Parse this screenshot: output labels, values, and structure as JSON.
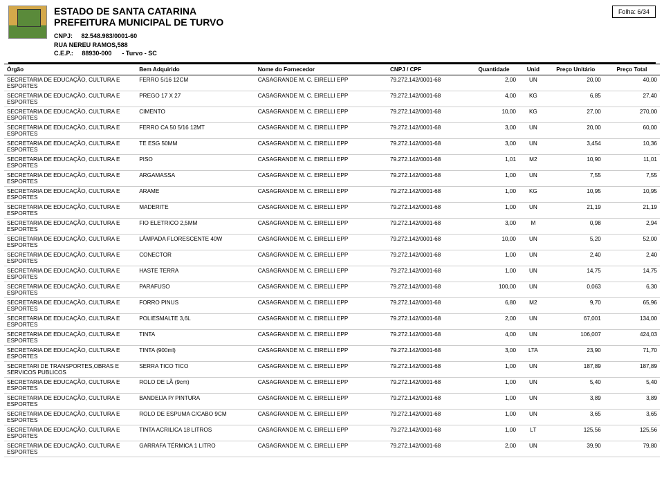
{
  "header": {
    "estado": "ESTADO DE SANTA CATARINA",
    "prefeitura": "PREFEITURA MUNICIPAL DE TURVO",
    "cnpj_label": "CNPJ:",
    "cnpj": "82.548.983/0001-60",
    "rua": "RUA NEREU RAMOS,588",
    "cep_label": "C.E.P.:",
    "cep": "88930-000",
    "cidade": "- Turvo - SC",
    "folha_label": "Folha:",
    "folha_value": "6/34"
  },
  "columns": [
    "Órgão",
    "Bem Adquirido",
    "Nome do Fornecedor",
    "CNPJ / CPF",
    "Quantidade",
    "Unid",
    "Preço Unitário",
    "Preço Total"
  ],
  "rows": [
    {
      "org": "SECRETARIA DE EDUCAÇÃO, CULTURA E ESPORTES",
      "bem": "FERRO 5/16 12CM",
      "nome": "CASAGRANDE M. C. EIRELLI  EPP",
      "cnpj": "79.272.142/0001-68",
      "qtd": "2,00",
      "un": "UN",
      "pu": "20,00",
      "pt": "40,00"
    },
    {
      "org": "SECRETARIA DE EDUCAÇÃO, CULTURA E ESPORTES",
      "bem": "PREGO 17 X 27",
      "nome": "CASAGRANDE M. C. EIRELLI  EPP",
      "cnpj": "79.272.142/0001-68",
      "qtd": "4,00",
      "un": "KG",
      "pu": "6,85",
      "pt": "27,40"
    },
    {
      "org": "SECRETARIA DE EDUCAÇÃO, CULTURA E ESPORTES",
      "bem": "CIMENTO",
      "nome": "CASAGRANDE M. C. EIRELLI  EPP",
      "cnpj": "79.272.142/0001-68",
      "qtd": "10,00",
      "un": "KG",
      "pu": "27,00",
      "pt": "270,00"
    },
    {
      "org": "SECRETARIA DE EDUCAÇÃO, CULTURA E ESPORTES",
      "bem": "FERRO CA 50 5/16 12MT",
      "nome": "CASAGRANDE M. C. EIRELLI  EPP",
      "cnpj": "79.272.142/0001-68",
      "qtd": "3,00",
      "un": "UN",
      "pu": "20,00",
      "pt": "60,00"
    },
    {
      "org": "SECRETARIA DE EDUCAÇÃO, CULTURA E ESPORTES",
      "bem": "TE ESG 50MM",
      "nome": "CASAGRANDE M. C. EIRELLI  EPP",
      "cnpj": "79.272.142/0001-68",
      "qtd": "3,00",
      "un": "UN",
      "pu": "3,454",
      "pt": "10,36"
    },
    {
      "org": "SECRETARIA DE EDUCAÇÃO, CULTURA E ESPORTES",
      "bem": "PISO",
      "nome": "CASAGRANDE M. C. EIRELLI  EPP",
      "cnpj": "79.272.142/0001-68",
      "qtd": "1,01",
      "un": "M2",
      "pu": "10,90",
      "pt": "11,01"
    },
    {
      "org": "SECRETARIA DE EDUCAÇÃO, CULTURA E ESPORTES",
      "bem": "ARGAMASSA",
      "nome": "CASAGRANDE M. C. EIRELLI  EPP",
      "cnpj": "79.272.142/0001-68",
      "qtd": "1,00",
      "un": "UN",
      "pu": "7,55",
      "pt": "7,55"
    },
    {
      "org": "SECRETARIA DE EDUCAÇÃO, CULTURA E ESPORTES",
      "bem": "ARAME",
      "nome": "CASAGRANDE M. C. EIRELLI  EPP",
      "cnpj": "79.272.142/0001-68",
      "qtd": "1,00",
      "un": "KG",
      "pu": "10,95",
      "pt": "10,95"
    },
    {
      "org": "SECRETARIA DE EDUCAÇÃO, CULTURA E ESPORTES",
      "bem": "MADERITE",
      "nome": "CASAGRANDE M. C. EIRELLI  EPP",
      "cnpj": "79.272.142/0001-68",
      "qtd": "1,00",
      "un": "UN",
      "pu": "21,19",
      "pt": "21,19"
    },
    {
      "org": "SECRETARIA DE EDUCAÇÃO, CULTURA E ESPORTES",
      "bem": "FIO ELETRICO 2,5MM",
      "nome": "CASAGRANDE M. C. EIRELLI  EPP",
      "cnpj": "79.272.142/0001-68",
      "qtd": "3,00",
      "un": "M",
      "pu": "0,98",
      "pt": "2,94"
    },
    {
      "org": "SECRETARIA DE EDUCAÇÃO, CULTURA E ESPORTES",
      "bem": "LÂMPADA FLORESCENTE 40W",
      "nome": "CASAGRANDE M. C. EIRELLI  EPP",
      "cnpj": "79.272.142/0001-68",
      "qtd": "10,00",
      "un": "UN",
      "pu": "5,20",
      "pt": "52,00"
    },
    {
      "org": "SECRETARIA DE EDUCAÇÃO, CULTURA E ESPORTES",
      "bem": "CONECTOR",
      "nome": "CASAGRANDE M. C. EIRELLI  EPP",
      "cnpj": "79.272.142/0001-68",
      "qtd": "1,00",
      "un": "UN",
      "pu": "2,40",
      "pt": "2,40"
    },
    {
      "org": "SECRETARIA DE EDUCAÇÃO, CULTURA E ESPORTES",
      "bem": "HASTE TERRA",
      "nome": "CASAGRANDE M. C. EIRELLI  EPP",
      "cnpj": "79.272.142/0001-68",
      "qtd": "1,00",
      "un": "UN",
      "pu": "14,75",
      "pt": "14,75"
    },
    {
      "org": "SECRETARIA DE EDUCAÇÃO, CULTURA E ESPORTES",
      "bem": "PARAFUSO",
      "nome": "CASAGRANDE M. C. EIRELLI  EPP",
      "cnpj": "79.272.142/0001-68",
      "qtd": "100,00",
      "un": "UN",
      "pu": "0,063",
      "pt": "6,30"
    },
    {
      "org": "SECRETARIA DE EDUCAÇÃO, CULTURA E ESPORTES",
      "bem": "FORRO PINUS",
      "nome": "CASAGRANDE M. C. EIRELLI  EPP",
      "cnpj": "79.272.142/0001-68",
      "qtd": "6,80",
      "un": "M2",
      "pu": "9,70",
      "pt": "65,96"
    },
    {
      "org": "SECRETARIA DE EDUCAÇÃO, CULTURA E ESPORTES",
      "bem": "POLIESMALTE 3,6L",
      "nome": "CASAGRANDE M. C. EIRELLI  EPP",
      "cnpj": "79.272.142/0001-68",
      "qtd": "2,00",
      "un": "UN",
      "pu": "67,001",
      "pt": "134,00"
    },
    {
      "org": "SECRETARIA DE EDUCAÇÃO, CULTURA E ESPORTES",
      "bem": "TINTA",
      "nome": "CASAGRANDE M. C. EIRELLI  EPP",
      "cnpj": "79.272.142/0001-68",
      "qtd": "4,00",
      "un": "UN",
      "pu": "106,007",
      "pt": "424,03"
    },
    {
      "org": "SECRETARIA DE EDUCAÇÃO, CULTURA E ESPORTES",
      "bem": "TINTA (900ml)",
      "nome": "CASAGRANDE M. C. EIRELLI  EPP",
      "cnpj": "79.272.142/0001-68",
      "qtd": "3,00",
      "un": "LTA",
      "pu": "23,90",
      "pt": "71,70"
    },
    {
      "org": "SECRETARI DE TRANSPORTES,OBRAS E SERVICOS PUBLICOS",
      "bem": "SERRA TICO TICO",
      "nome": "CASAGRANDE M. C. EIRELLI  EPP",
      "cnpj": "79.272.142/0001-68",
      "qtd": "1,00",
      "un": "UN",
      "pu": "187,89",
      "pt": "187,89"
    },
    {
      "org": "SECRETARIA DE EDUCAÇÃO, CULTURA E ESPORTES",
      "bem": "ROLO DE LÃ (9cm)",
      "nome": "CASAGRANDE M. C. EIRELLI  EPP",
      "cnpj": "79.272.142/0001-68",
      "qtd": "1,00",
      "un": "UN",
      "pu": "5,40",
      "pt": "5,40"
    },
    {
      "org": "SECRETARIA DE EDUCAÇÃO, CULTURA E ESPORTES",
      "bem": "BANDEIJA P/ PINTURA",
      "nome": "CASAGRANDE M. C. EIRELLI  EPP",
      "cnpj": "79.272.142/0001-68",
      "qtd": "1,00",
      "un": "UN",
      "pu": "3,89",
      "pt": "3,89"
    },
    {
      "org": "SECRETARIA DE EDUCAÇÃO, CULTURA E ESPORTES",
      "bem": "ROLO DE ESPUMA C/CABO 9CM",
      "nome": "CASAGRANDE M. C. EIRELLI  EPP",
      "cnpj": "79.272.142/0001-68",
      "qtd": "1,00",
      "un": "UN",
      "pu": "3,65",
      "pt": "3,65"
    },
    {
      "org": "SECRETARIA DE EDUCAÇÃO, CULTURA E ESPORTES",
      "bem": "TINTA ACRILICA 18 LITROS",
      "nome": "CASAGRANDE M. C. EIRELLI  EPP",
      "cnpj": "79.272.142/0001-68",
      "qtd": "1,00",
      "un": "LT",
      "pu": "125,56",
      "pt": "125,56"
    },
    {
      "org": "SECRETARIA DE EDUCAÇÃO, CULTURA E ESPORTES",
      "bem": "GARRAFA TÉRMICA 1 LITRO",
      "nome": "CASAGRANDE M. C. EIRELLI  EPP",
      "cnpj": "79.272.142/0001-68",
      "qtd": "2,00",
      "un": "UN",
      "pu": "39,90",
      "pt": "79,80"
    }
  ]
}
